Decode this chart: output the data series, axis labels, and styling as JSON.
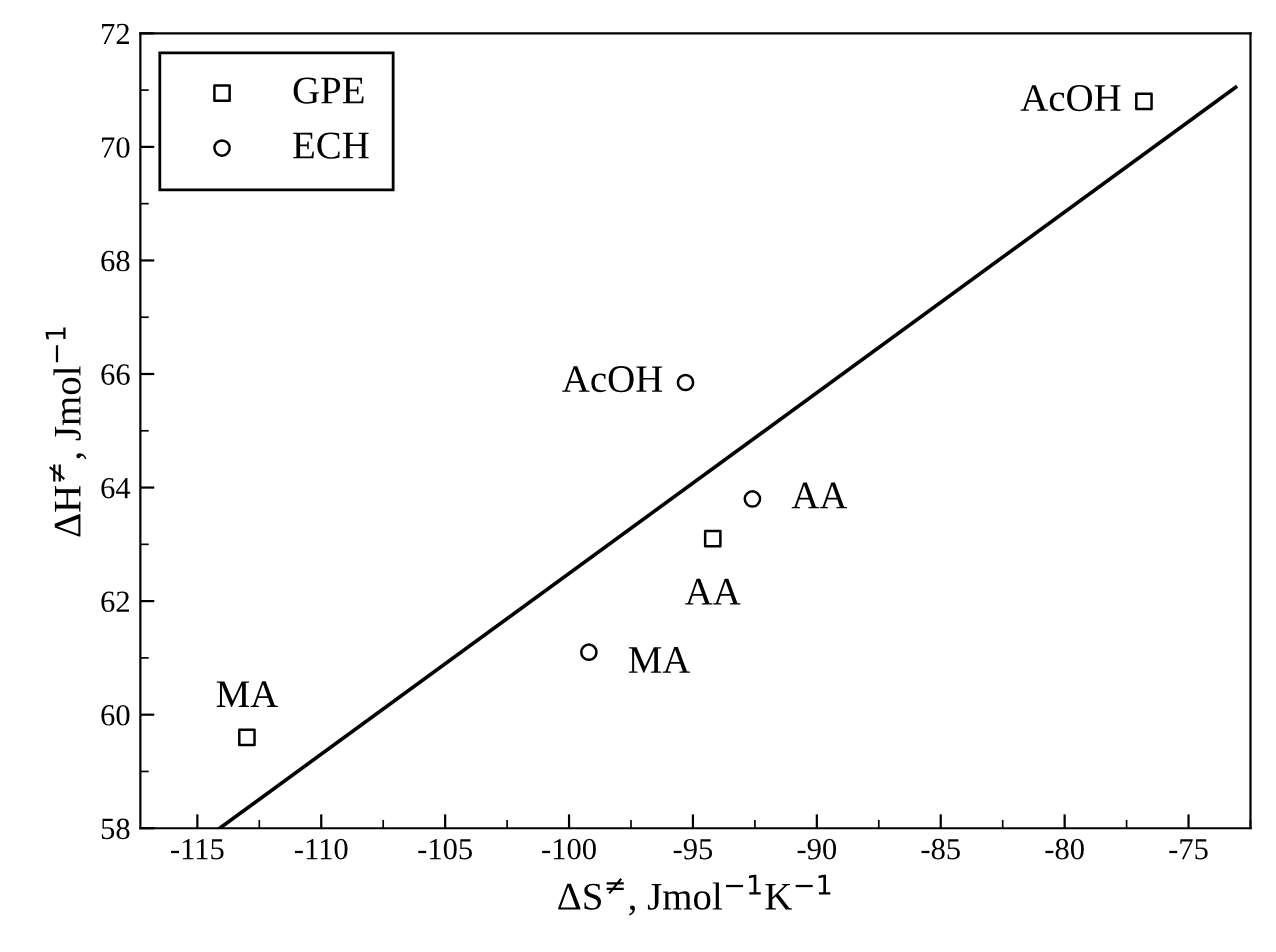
{
  "chart_data": {
    "type": "scatter",
    "xlabel": "ΔS$^{≠}$, Jmol$^{−1}$K$^{−1}$",
    "ylabel": "ΔH$^{≠}$, Jmol$^{−1}$",
    "xlim": [
      -117.3,
      -72.5
    ],
    "ylim": [
      58,
      72
    ],
    "xticks": [
      -115,
      -110,
      -105,
      -100,
      -95,
      -90,
      -85,
      -80,
      -75
    ],
    "yticks": [
      58,
      60,
      62,
      64,
      66,
      68,
      70,
      72
    ],
    "grid": false,
    "legend": "top left",
    "series": [
      {
        "name": "GPE",
        "marker": "square",
        "color": "#000000",
        "x": [
          -76.8,
          -94.2,
          -113.0
        ],
        "values": [
          70.8,
          63.1,
          59.6
        ]
      },
      {
        "name": "ECH",
        "marker": "circle",
        "color": "#000000",
        "x": [
          -95.3,
          -92.6,
          -99.2
        ],
        "values": [
          65.85,
          63.8,
          61.1
        ]
      },
      {
        "type": "line",
        "marker": "none",
        "line_style": "solid",
        "color": "#000000",
        "x": [
          -114.1,
          -73.1
        ],
        "values": [
          58,
          71.05
        ]
      }
    ],
    "annotations": [
      {
        "text": "AcOH",
        "x": -76.8,
        "y": 70.8
      },
      {
        "text": "AA",
        "x": -94.2,
        "y": 63.1
      },
      {
        "text": "MA",
        "x": -113.0,
        "y": 59.6
      },
      {
        "text": "AcOH",
        "x": -95.3,
        "y": 65.85
      },
      {
        "text": "AA",
        "x": -92.6,
        "y": 63.8
      },
      {
        "text": "MA",
        "x": -99.2,
        "y": 61.1
      }
    ]
  }
}
